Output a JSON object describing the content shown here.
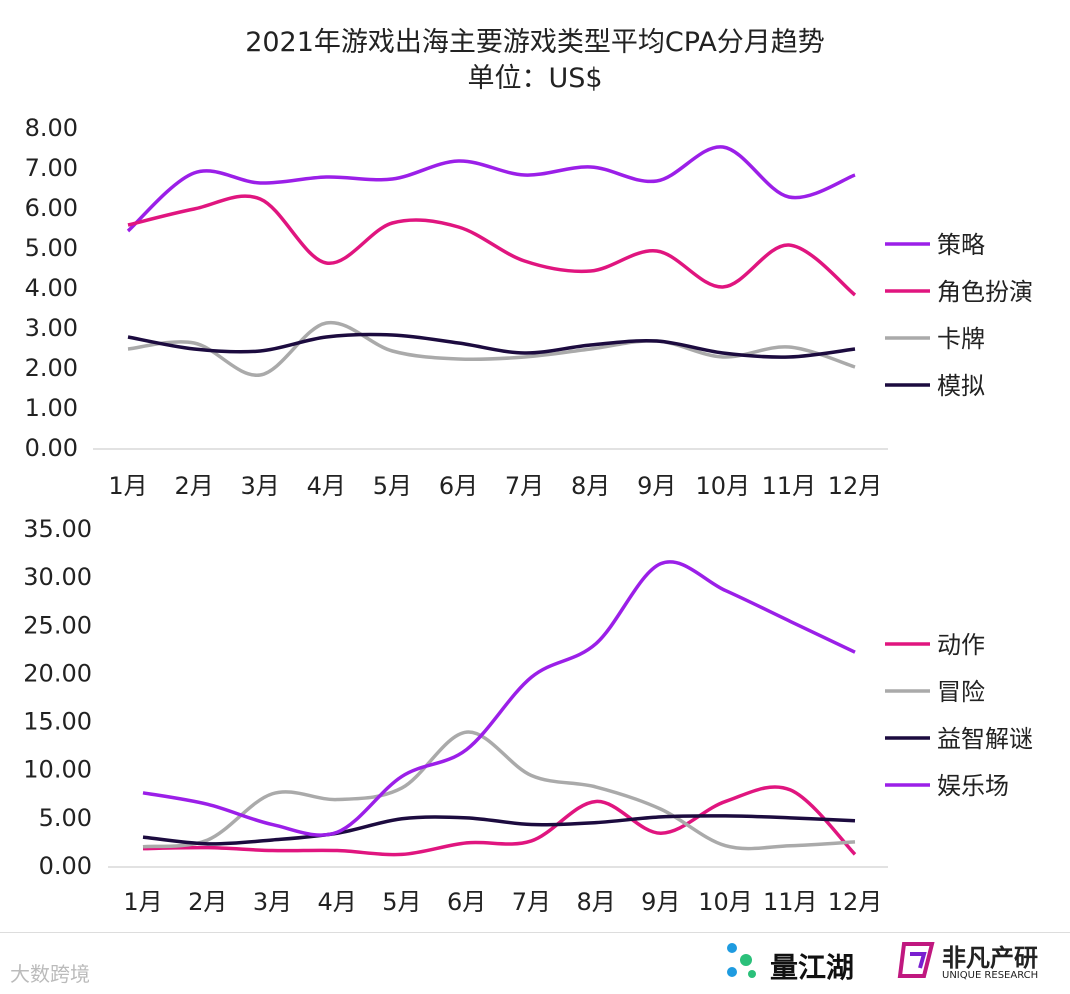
{
  "title": "2021年游戏出海主要游戏类型平均CPA分月趋势",
  "subtitle": "单位：US$",
  "colors": {
    "purple": "#9b1fe8",
    "pink": "#e0157f",
    "gray": "#aaaaaa",
    "dark": "#1c0b3f"
  },
  "chart_data": [
    {
      "type": "line",
      "smooth": true,
      "categories": [
        "1月",
        "2月",
        "3月",
        "4月",
        "5月",
        "6月",
        "7月",
        "8月",
        "9月",
        "10月",
        "11月",
        "12月"
      ],
      "ylim": [
        0,
        8
      ],
      "yticks": [
        "0.00",
        "1.00",
        "2.00",
        "3.00",
        "4.00",
        "5.00",
        "6.00",
        "7.00",
        "8.00"
      ],
      "grid": false,
      "legend": "right",
      "series": [
        {
          "name": "策略",
          "color": "#9b1fe8",
          "values": [
            5.4,
            6.85,
            6.6,
            6.75,
            6.7,
            7.15,
            6.8,
            7.0,
            6.65,
            7.5,
            6.25,
            6.8
          ]
        },
        {
          "name": "角色扮演",
          "color": "#e0157f",
          "values": [
            5.55,
            5.95,
            6.2,
            4.6,
            5.6,
            5.5,
            4.65,
            4.4,
            4.9,
            4.0,
            5.05,
            3.8
          ]
        },
        {
          "name": "卡牌",
          "color": "#aaaaaa",
          "values": [
            2.45,
            2.6,
            1.8,
            3.1,
            2.4,
            2.2,
            2.25,
            2.45,
            2.65,
            2.25,
            2.5,
            2.0
          ]
        },
        {
          "name": "模拟",
          "color": "#1c0b3f",
          "values": [
            2.75,
            2.45,
            2.4,
            2.75,
            2.8,
            2.6,
            2.35,
            2.55,
            2.65,
            2.35,
            2.25,
            2.45
          ]
        }
      ]
    },
    {
      "type": "line",
      "smooth": true,
      "categories": [
        "1月",
        "2月",
        "3月",
        "4月",
        "5月",
        "6月",
        "7月",
        "8月",
        "9月",
        "10月",
        "11月",
        "12月"
      ],
      "ylim": [
        0,
        35
      ],
      "yticks": [
        "0.00",
        "5.00",
        "10.00",
        "15.00",
        "20.00",
        "25.00",
        "30.00",
        "35.00"
      ],
      "grid": false,
      "legend": "right",
      "series": [
        {
          "name": "动作",
          "color": "#e0157f",
          "values": [
            1.7,
            1.8,
            1.5,
            1.5,
            1.1,
            2.3,
            2.5,
            6.6,
            3.3,
            6.6,
            7.8,
            1.1
          ]
        },
        {
          "name": "冒险",
          "color": "#aaaaaa",
          "values": [
            1.9,
            2.6,
            7.4,
            6.8,
            8.0,
            13.8,
            9.3,
            8.1,
            5.8,
            2.0,
            2.0,
            2.4
          ]
        },
        {
          "name": "益智解谜",
          "color": "#1c0b3f",
          "values": [
            2.9,
            2.2,
            2.6,
            3.3,
            4.8,
            4.9,
            4.2,
            4.4,
            5.0,
            5.1,
            4.9,
            4.6
          ]
        },
        {
          "name": "娱乐场",
          "color": "#9b1fe8",
          "values": [
            7.5,
            6.3,
            4.2,
            3.4,
            9.2,
            12.0,
            19.5,
            23.0,
            31.3,
            28.5,
            25.3,
            22.1
          ]
        }
      ]
    }
  ],
  "footer": {
    "watermark": "大数跨境",
    "logo1": "量江湖",
    "logo2": "非凡产研",
    "logo2_sub": "UNIQUE RESEARCH"
  }
}
